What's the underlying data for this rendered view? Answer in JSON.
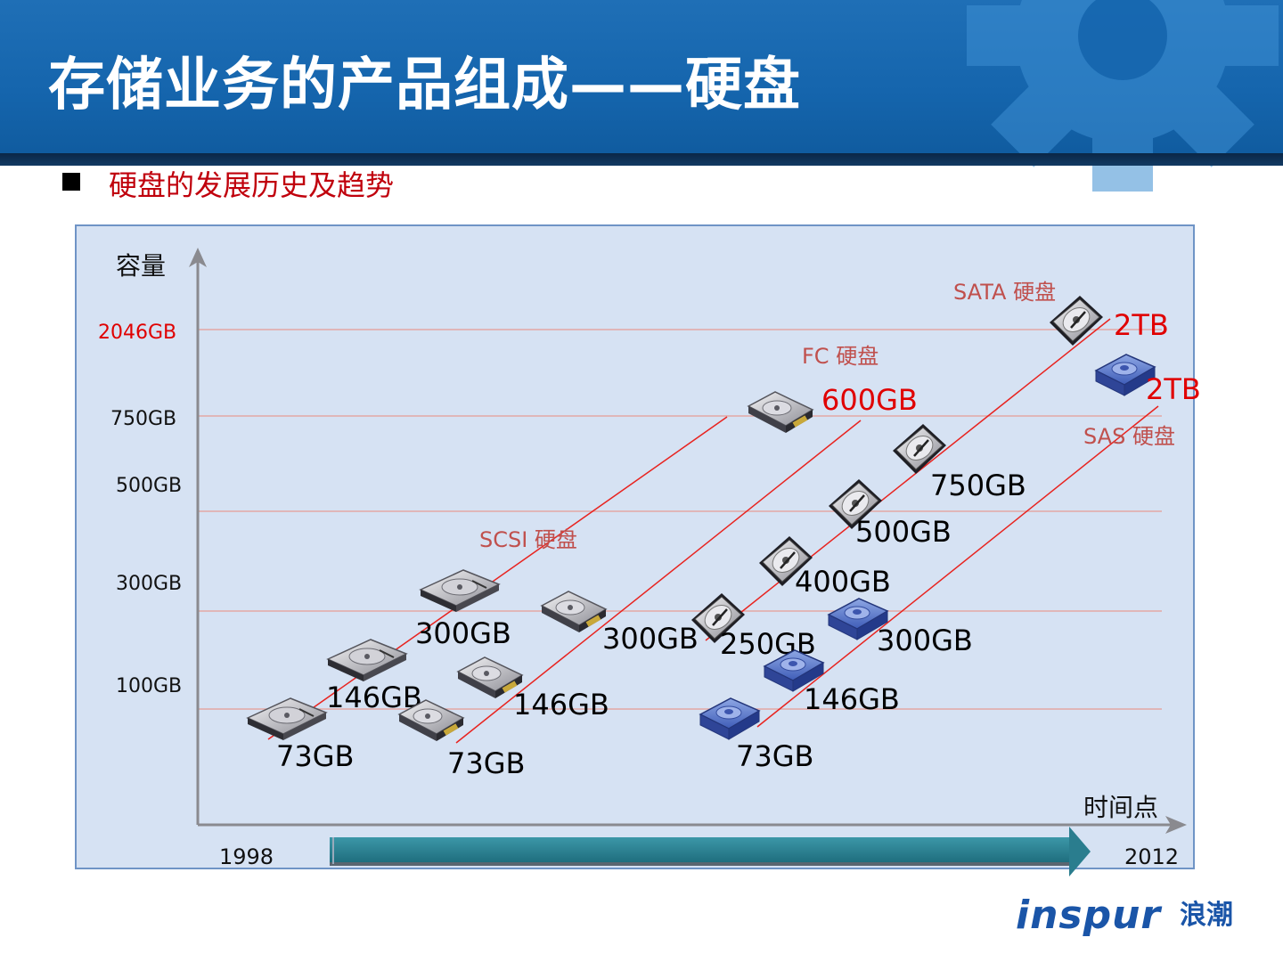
{
  "slide": {
    "title": "存储业务的产品组成——硬盘",
    "subtitle": "硬盘的发展历史及趋势"
  },
  "brand": {
    "name_en": "inspur",
    "name_cn": "浪潮"
  },
  "colors": {
    "header_blue": "#1565ad",
    "subtitle_red": "#c0000c",
    "panel_bg": "#d6e2f3",
    "trend_line_red": "#e8231f",
    "capacity_red_label": "#e00000",
    "series_label_color": "#c0504d",
    "time_arrow": "#2f8494"
  },
  "chart_data": {
    "type": "diagram-timeline",
    "ylabel": "容量",
    "xlabel": "时间点",
    "y_ticks": [
      "2046GB",
      "750GB",
      "500GB",
      "300GB",
      "100GB"
    ],
    "x_range_labels": [
      "1998",
      "2012"
    ],
    "series": [
      {
        "name": "SCSI 硬盘",
        "icon": "scsi-drive-icon",
        "points": [
          {
            "label": "73GB"
          },
          {
            "label": "146GB"
          },
          {
            "label": "300GB"
          }
        ]
      },
      {
        "name": "FC 硬盘",
        "icon": "fc-drive-icon",
        "points": [
          {
            "label": "73GB"
          },
          {
            "label": "146GB"
          },
          {
            "label": "300GB"
          },
          {
            "label": "600GB",
            "highlight": true
          }
        ]
      },
      {
        "name": "SATA 硬盘",
        "icon": "sata-drive-icon",
        "points": [
          {
            "label": "250GB"
          },
          {
            "label": "400GB"
          },
          {
            "label": "500GB"
          },
          {
            "label": "750GB"
          },
          {
            "label": "2TB",
            "highlight": true
          }
        ]
      },
      {
        "name": "SAS 硬盘",
        "icon": "sas-drive-icon",
        "points": [
          {
            "label": "73GB"
          },
          {
            "label": "146GB"
          },
          {
            "label": "300GB"
          },
          {
            "label": "2TB",
            "highlight": true
          }
        ]
      }
    ]
  }
}
